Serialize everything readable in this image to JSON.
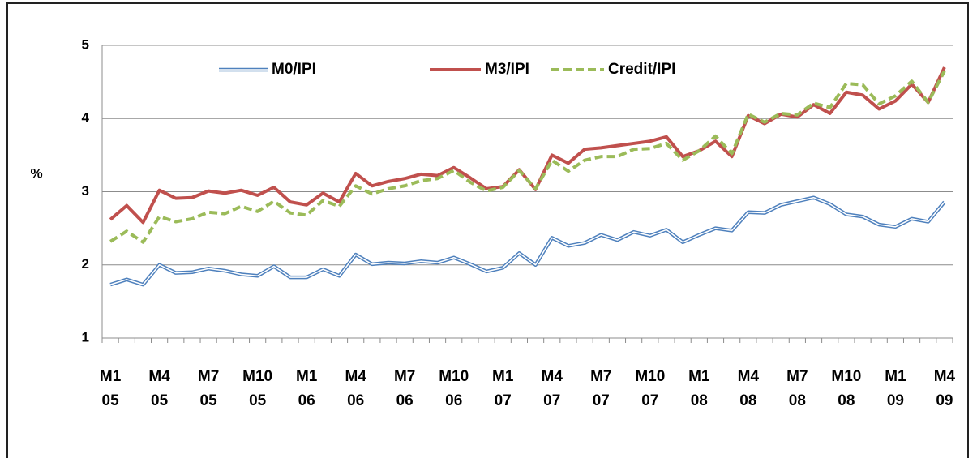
{
  "chart_data": {
    "type": "line",
    "y_label": "%",
    "categories": [
      "M1\n05",
      null,
      null,
      "M4\n05",
      null,
      null,
      "M7\n05",
      null,
      null,
      "M10\n05",
      null,
      null,
      "M1\n06",
      null,
      null,
      "M4\n06",
      null,
      null,
      "M7\n06",
      null,
      null,
      "M10\n06",
      null,
      null,
      "M1\n07",
      null,
      null,
      "M4\n07",
      null,
      null,
      "M7\n07",
      null,
      null,
      "M10\n07",
      null,
      null,
      "M1\n08",
      null,
      null,
      "M4\n08",
      null,
      null,
      "M7\n08",
      null,
      null,
      "M10\n08",
      null,
      null,
      "M1\n09",
      null,
      null,
      "M4\n09"
    ],
    "series": [
      {
        "name": "M0/IPI",
        "color": "#4f81bd",
        "line_style": "double",
        "values": [
          1.73,
          1.8,
          1.73,
          2.0,
          1.89,
          1.9,
          1.95,
          1.92,
          1.87,
          1.85,
          1.98,
          1.83,
          1.83,
          1.94,
          1.85,
          2.14,
          2.01,
          2.03,
          2.02,
          2.05,
          2.03,
          2.1,
          2.01,
          1.91,
          1.96,
          2.16,
          2.0,
          2.37,
          2.26,
          2.3,
          2.41,
          2.34,
          2.45,
          2.4,
          2.48,
          2.31,
          2.41,
          2.5,
          2.47,
          2.72,
          2.71,
          2.82,
          2.87,
          2.92,
          2.83,
          2.69,
          2.66,
          2.55,
          2.52,
          2.63,
          2.59,
          2.86
        ]
      },
      {
        "name": "M3/IPI",
        "color": "#c0504d",
        "line_style": "solid",
        "values": [
          2.62,
          2.81,
          2.58,
          3.02,
          2.91,
          2.92,
          3.01,
          2.98,
          3.02,
          2.95,
          3.06,
          2.86,
          2.82,
          2.98,
          2.86,
          3.25,
          3.08,
          3.14,
          3.18,
          3.24,
          3.22,
          3.33,
          3.19,
          3.04,
          3.07,
          3.3,
          3.03,
          3.5,
          3.39,
          3.58,
          3.6,
          3.63,
          3.66,
          3.69,
          3.75,
          3.48,
          3.56,
          3.69,
          3.48,
          4.04,
          3.93,
          4.06,
          4.02,
          4.19,
          4.07,
          4.36,
          4.32,
          4.13,
          4.24,
          4.47,
          4.22,
          4.7
        ]
      },
      {
        "name": "Credit/IPI",
        "color": "#9bbb59",
        "line_style": "dashed",
        "values": [
          2.32,
          2.46,
          2.31,
          2.66,
          2.59,
          2.63,
          2.72,
          2.7,
          2.8,
          2.73,
          2.87,
          2.71,
          2.68,
          2.88,
          2.8,
          3.08,
          2.97,
          3.04,
          3.08,
          3.15,
          3.18,
          3.29,
          3.13,
          3.01,
          3.06,
          3.29,
          3.04,
          3.43,
          3.28,
          3.43,
          3.48,
          3.48,
          3.58,
          3.59,
          3.66,
          3.43,
          3.56,
          3.76,
          3.52,
          4.06,
          3.95,
          4.07,
          4.05,
          4.21,
          4.15,
          4.48,
          4.46,
          4.2,
          4.31,
          4.51,
          4.22,
          4.65
        ]
      }
    ],
    "ylim": [
      1,
      5
    ],
    "yticks": [
      1,
      2,
      3,
      4,
      5
    ],
    "grid": true,
    "legend": "top"
  }
}
